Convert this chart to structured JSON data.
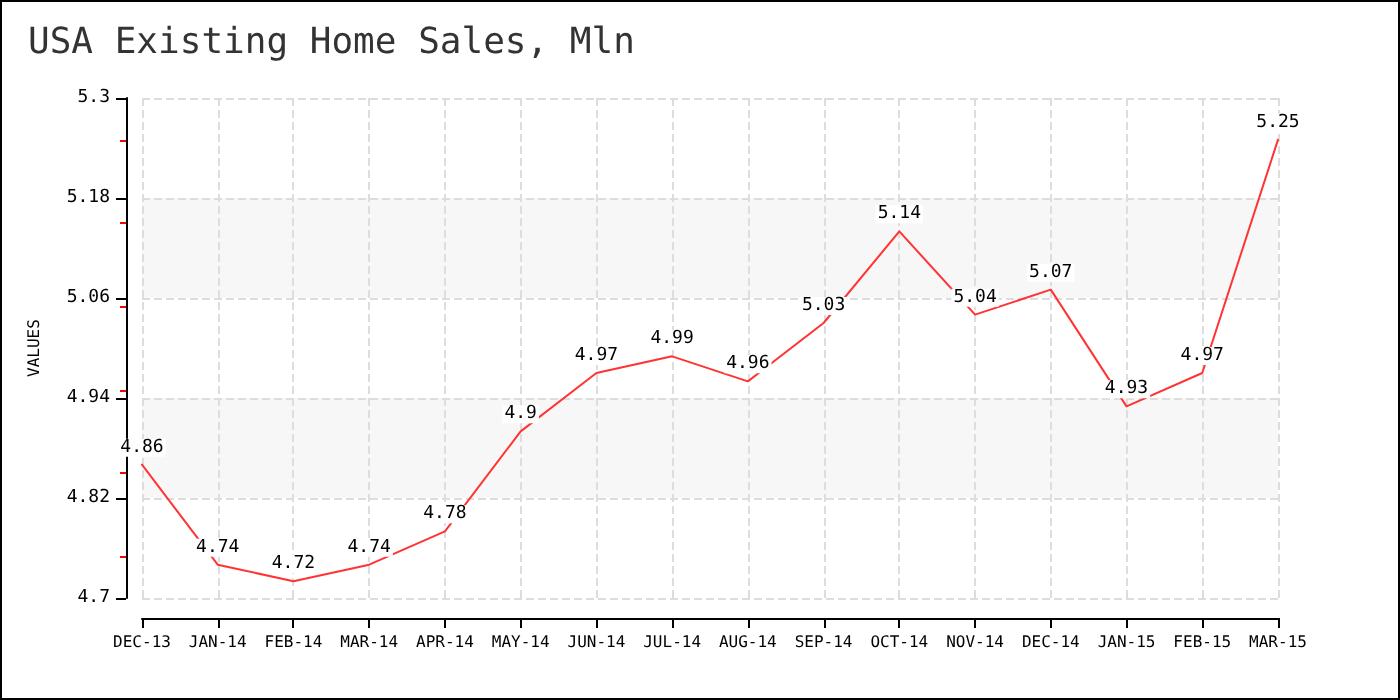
{
  "chart_data": {
    "type": "line",
    "title": "USA Existing Home Sales, Mln",
    "ylabel": "VALUES",
    "categories": [
      "DEC-13",
      "JAN-14",
      "FEB-14",
      "MAR-14",
      "APR-14",
      "MAY-14",
      "JUN-14",
      "JUL-14",
      "AUG-14",
      "SEP-14",
      "OCT-14",
      "NOV-14",
      "DEC-14",
      "JAN-15",
      "FEB-15",
      "MAR-15"
    ],
    "series": [
      {
        "color": "#ff3333",
        "values": [
          4.86,
          4.74,
          4.72,
          4.74,
          4.78,
          4.9,
          4.97,
          4.99,
          4.96,
          5.03,
          5.14,
          5.04,
          5.07,
          4.93,
          4.97,
          5.25
        ]
      }
    ],
    "ylim": [
      4.7,
      5.3
    ],
    "yticks": [
      4.7,
      4.82,
      4.94,
      5.06,
      5.18,
      5.3
    ],
    "grid": true,
    "data_labels": true,
    "marker": "none",
    "line_style": "solid"
  }
}
